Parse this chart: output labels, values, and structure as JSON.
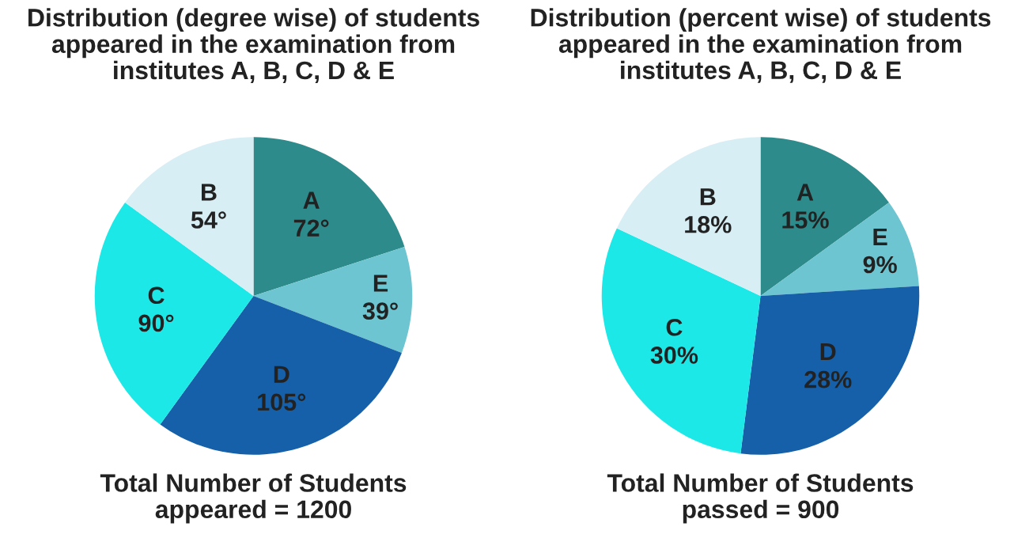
{
  "chart_data": [
    {
      "type": "pie",
      "title": "Distribution (degree wise) of students\nappeared in the examination from\ninstitutes A, B, C, D & E",
      "categories": [
        "A",
        "E",
        "D",
        "C",
        "B"
      ],
      "values": [
        72,
        39,
        105,
        90,
        54
      ],
      "colors": [
        "#2e8b8b",
        "#6cc5d0",
        "#1560a8",
        "#1ce8e8",
        "#d8eef5"
      ],
      "value_labels": [
        "72°",
        "39°",
        "105°",
        "90°",
        "54°"
      ],
      "annotations": [
        "Total Number of Students\nappeared = 1200"
      ]
    },
    {
      "type": "pie",
      "title": "Distribution (percent wise) of students\nappeared in the examination from\ninstitutes A, B, C, D & E",
      "categories": [
        "A",
        "E",
        "D",
        "C",
        "B"
      ],
      "values": [
        15,
        9,
        28,
        30,
        18
      ],
      "colors": [
        "#2e8b8b",
        "#6cc5d0",
        "#1560a8",
        "#1ce8e8",
        "#d8eef5"
      ],
      "value_labels": [
        "15%",
        "9%",
        "28%",
        "30%",
        "18%"
      ],
      "annotations": [
        "Total Number of Students\npassed = 900"
      ]
    }
  ]
}
